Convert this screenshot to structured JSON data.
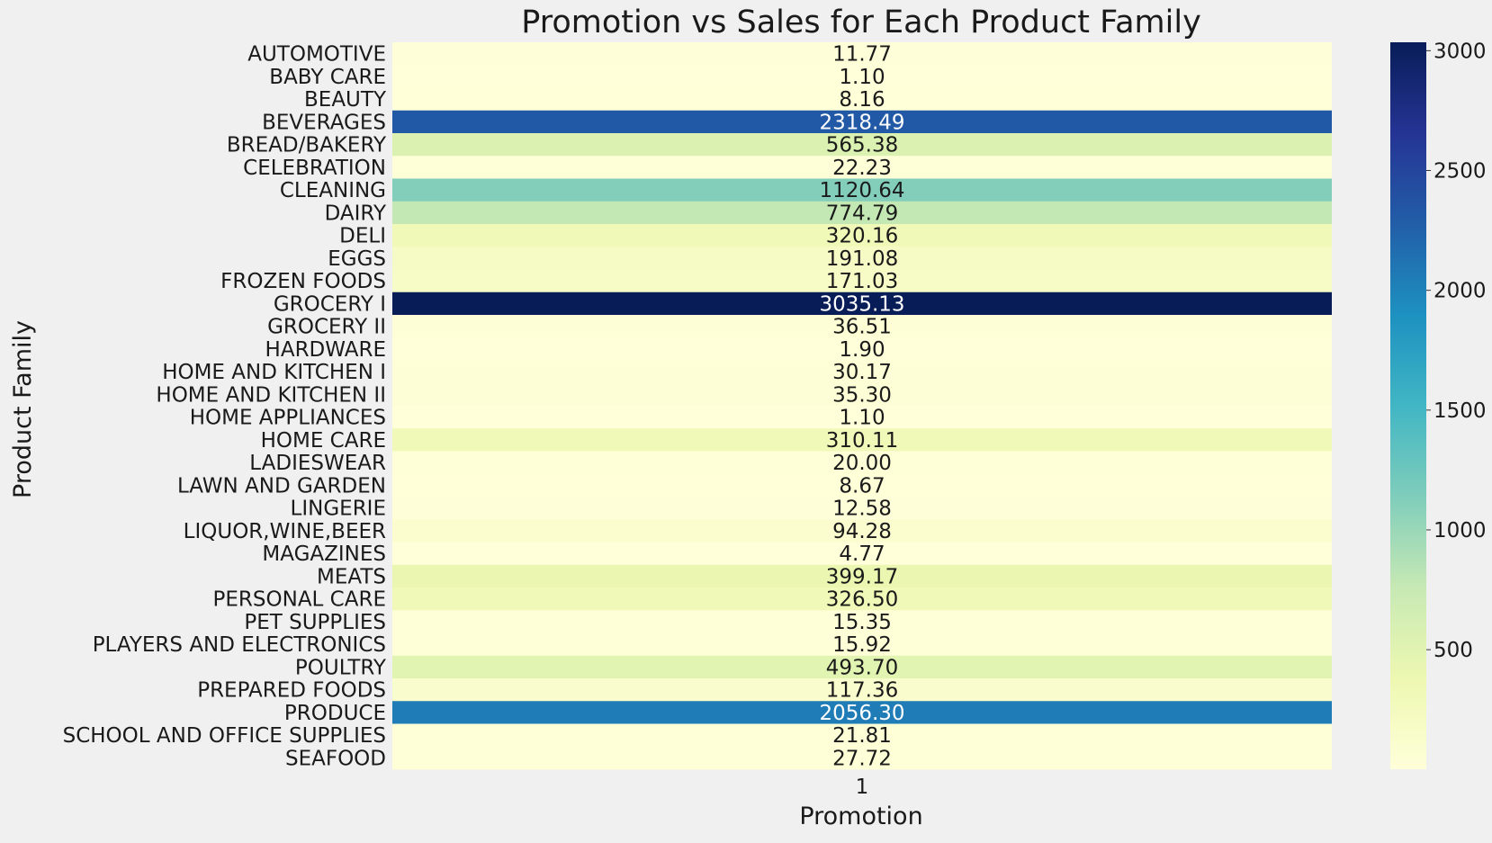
{
  "chart_data": {
    "type": "heatmap",
    "title": "Promotion vs Sales for Each Product Family",
    "xlabel": "Promotion",
    "ylabel": "Product Family",
    "x_categories": [
      "1"
    ],
    "y_categories": [
      "AUTOMOTIVE",
      "BABY CARE",
      "BEAUTY",
      "BEVERAGES",
      "BREAD/BAKERY",
      "CELEBRATION",
      "CLEANING",
      "DAIRY",
      "DELI",
      "EGGS",
      "FROZEN FOODS",
      "GROCERY I",
      "GROCERY II",
      "HARDWARE",
      "HOME AND KITCHEN I",
      "HOME AND KITCHEN II",
      "HOME APPLIANCES",
      "HOME CARE",
      "LADIESWEAR",
      "LAWN AND GARDEN",
      "LINGERIE",
      "LIQUOR,WINE,BEER",
      "MAGAZINES",
      "MEATS",
      "PERSONAL CARE",
      "PET SUPPLIES",
      "PLAYERS AND ELECTRONICS",
      "POULTRY",
      "PREPARED FOODS",
      "PRODUCE",
      "SCHOOL AND OFFICE SUPPLIES",
      "SEAFOOD"
    ],
    "values": [
      11.77,
      1.1,
      8.16,
      2318.49,
      565.38,
      22.23,
      1120.64,
      774.79,
      320.16,
      191.08,
      171.03,
      3035.13,
      36.51,
      1.9,
      30.17,
      35.3,
      1.1,
      310.11,
      20.0,
      8.67,
      12.58,
      94.28,
      4.77,
      399.17,
      326.5,
      15.35,
      15.92,
      493.7,
      117.36,
      2056.3,
      21.81,
      27.72
    ],
    "annotations": [
      "11.77",
      "1.10",
      "8.16",
      "2318.49",
      "565.38",
      "22.23",
      "1120.64",
      "774.79",
      "320.16",
      "191.08",
      "171.03",
      "3035.13",
      "36.51",
      "1.90",
      "30.17",
      "35.30",
      "1.10",
      "310.11",
      "20.00",
      "8.67",
      "12.58",
      "94.28",
      "4.77",
      "399.17",
      "326.50",
      "15.35",
      "15.92",
      "493.70",
      "117.36",
      "2056.30",
      "21.81",
      "27.72"
    ],
    "colormap": "YlGnBu",
    "vmin": 1.1,
    "vmax": 3035.13,
    "colorbar_ticks": [
      500,
      1000,
      1500,
      2000,
      2500,
      3000
    ],
    "colorbar_tick_labels": [
      "500",
      "1000",
      "1500",
      "2000",
      "2500",
      "3000"
    ],
    "colors": {
      "background": "#f0f0f0",
      "text": "#1a1a1a",
      "text_on_dark": "#ffffff",
      "cmap_stops": [
        "#ffffd9",
        "#edf8b1",
        "#c7e9b4",
        "#7fcdbb",
        "#41b6c4",
        "#1d91c0",
        "#225ea8",
        "#253494",
        "#081d58"
      ]
    }
  }
}
